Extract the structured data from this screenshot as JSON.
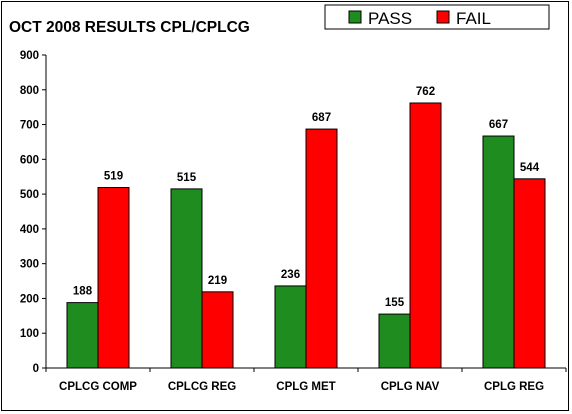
{
  "chart_data": {
    "type": "bar",
    "title": "OCT 2008 RESULTS CPL/CPLCG",
    "categories": [
      "CPLCG COMP",
      "CPLCG REG",
      "CPLG MET",
      "CPLG NAV",
      "CPLG REG"
    ],
    "series": [
      {
        "name": "PASS",
        "color": "#1e8c1e",
        "values": [
          188,
          515,
          236,
          155,
          667
        ]
      },
      {
        "name": "FAIL",
        "color": "#ff0000",
        "values": [
          519,
          219,
          687,
          762,
          544
        ]
      }
    ],
    "xlabel": "",
    "ylabel": "",
    "ylim": [
      0,
      900
    ],
    "yticks": [
      0,
      100,
      200,
      300,
      400,
      500,
      600,
      700,
      800,
      900
    ],
    "grid": false,
    "legend": "top-right",
    "data_labels": true
  }
}
